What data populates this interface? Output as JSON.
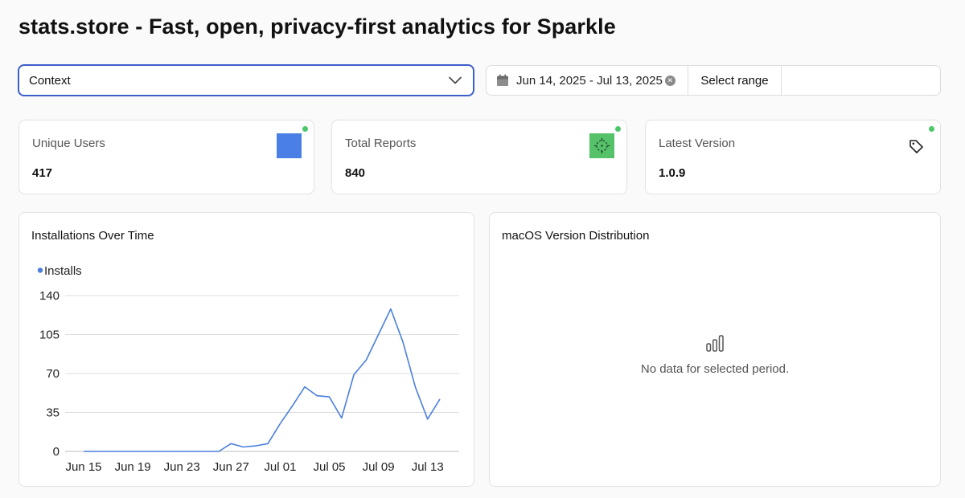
{
  "page": {
    "title": "stats.store - Fast, open, privacy-first analytics for Sparkle"
  },
  "filters": {
    "context": {
      "value": "Context",
      "icon": "chevron-down-icon"
    },
    "date_range": {
      "value": "Jun 14, 2025 - Jul 13, 2025",
      "calendar_icon": "calendar-icon",
      "clear_icon": "clear-icon",
      "select_range_label": "Select range"
    }
  },
  "stats": [
    {
      "label": "Unique Users",
      "value": "417",
      "icon": "blue-square-icon",
      "status_color": "#4cc76a"
    },
    {
      "label": "Total Reports",
      "value": "840",
      "icon": "crosshair-icon",
      "status_color": "#4cc76a"
    },
    {
      "label": "Latest Version",
      "value": "1.0.9",
      "icon": "tag-icon",
      "status_color": "#4cc76a"
    }
  ],
  "installs_panel": {
    "title": "Installations Over Time"
  },
  "macos_panel": {
    "title": "macOS Version Distribution",
    "empty_icon": "bar-chart-icon",
    "empty_message": "No data for selected period."
  },
  "chart_data": {
    "type": "line",
    "title": "Installations Over Time",
    "xlabel": "",
    "ylabel": "",
    "ylim": [
      0,
      140
    ],
    "y_ticks": [
      0,
      35,
      70,
      105,
      140
    ],
    "x_tick_labels": [
      "Jun 15",
      "Jun 19",
      "Jun 23",
      "Jun 27",
      "Jul 01",
      "Jul 05",
      "Jul 09",
      "Jul 13"
    ],
    "grid": true,
    "legend_position": "top-left",
    "series": [
      {
        "name": "Installs",
        "color": "#4a7fdc",
        "x": [
          "Jun 15",
          "Jun 16",
          "Jun 17",
          "Jun 18",
          "Jun 19",
          "Jun 20",
          "Jun 21",
          "Jun 22",
          "Jun 23",
          "Jun 24",
          "Jun 25",
          "Jun 26",
          "Jun 27",
          "Jun 28",
          "Jun 29",
          "Jun 30",
          "Jul 01",
          "Jul 02",
          "Jul 03",
          "Jul 04",
          "Jul 05",
          "Jul 06",
          "Jul 07",
          "Jul 08",
          "Jul 09",
          "Jul 10",
          "Jul 11",
          "Jul 12",
          "Jul 13",
          "Jul 14"
        ],
        "values": [
          0,
          0,
          0,
          0,
          0,
          0,
          0,
          0,
          0,
          0,
          0,
          0,
          7,
          4,
          5,
          7,
          25,
          41,
          58,
          50,
          49,
          30,
          69,
          82,
          105,
          128,
          98,
          58,
          29,
          47
        ]
      }
    ]
  }
}
